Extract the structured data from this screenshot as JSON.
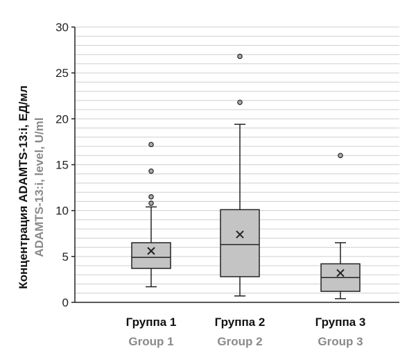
{
  "chart_data": {
    "type": "boxplot",
    "ylabel": "Концентрация ADAMTS-13:i, ЕД/мл",
    "ylabel_en": "ADAMTS-13:i, level, U/ml",
    "ylim": [
      0,
      30
    ],
    "yticks": [
      "0",
      "5",
      "10",
      "15",
      "20",
      "25",
      "30"
    ],
    "grid": true,
    "categories": [
      "Группа 1",
      "Группа 2",
      "Группа 3"
    ],
    "categories_en": [
      "Group 1",
      "Group 2",
      "Group 3"
    ],
    "series": [
      {
        "min": 1.7,
        "q1": 3.7,
        "median": 4.9,
        "q3": 6.5,
        "max": 10.4,
        "mean": 5.6,
        "outliers": [
          10.8,
          11.5,
          14.3,
          17.2
        ]
      },
      {
        "min": 0.7,
        "q1": 2.8,
        "median": 6.3,
        "q3": 10.1,
        "max": 19.4,
        "mean": 7.4,
        "outliers": [
          21.8,
          26.8
        ]
      },
      {
        "min": 0.4,
        "q1": 1.2,
        "median": 2.7,
        "q3": 4.2,
        "max": 6.5,
        "mean": 3.2,
        "outliers": [
          16.0
        ]
      }
    ],
    "colors": {
      "box": "#c4c4c4",
      "stroke": "#222222",
      "grid": "#cfcfcf",
      "outlier_fill": "#aaaaaa"
    }
  }
}
